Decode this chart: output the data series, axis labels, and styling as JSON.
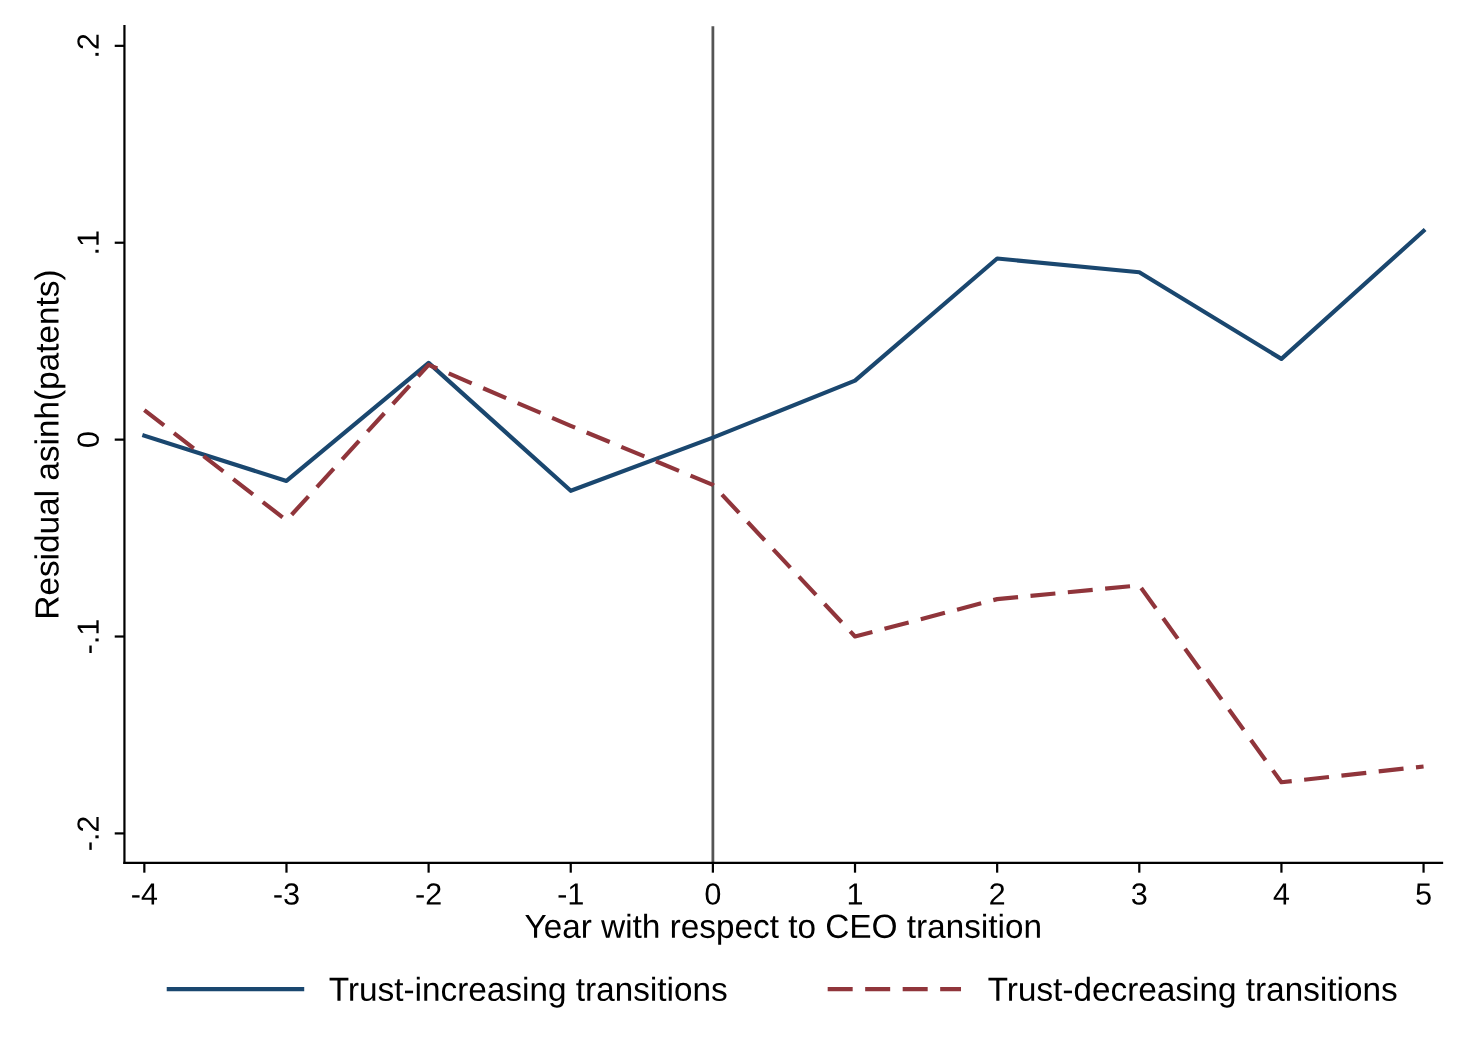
{
  "chart_data": {
    "type": "line",
    "xlabel": "Year with respect to CEO transition",
    "ylabel": "Residual asinh(patents)",
    "x": [
      -4,
      -3,
      -2,
      -1,
      0,
      1,
      2,
      3,
      4,
      5
    ],
    "series": [
      {
        "name": "Trust-increasing transitions",
        "color": "#1a476f",
        "line_style": "solid",
        "values": [
          0.002,
          -0.021,
          0.039,
          -0.026,
          0.001,
          0.03,
          0.092,
          0.085,
          0.041,
          0.106
        ]
      },
      {
        "name": "Trust-decreasing transitions",
        "color": "#90353b",
        "line_style": "dashed",
        "values": [
          0.015,
          -0.041,
          0.038,
          0.007,
          -0.023,
          -0.1,
          -0.081,
          -0.074,
          -0.174,
          -0.166
        ]
      }
    ],
    "xlim": [
      -4.14,
      5.13
    ],
    "ylim": [
      -0.215,
      0.21
    ],
    "xticks": [
      -4,
      -3,
      -2,
      -1,
      0,
      1,
      2,
      3,
      4,
      5
    ],
    "yticks": [
      {
        "value": -0.2,
        "label": "-.2"
      },
      {
        "value": -0.1,
        "label": "-.1"
      },
      {
        "value": 0,
        "label": "0"
      },
      {
        "value": 0.1,
        "label": ".1"
      },
      {
        "value": 0.2,
        "label": ".2"
      }
    ],
    "ref_lines": [
      {
        "axis": "x",
        "value": 0,
        "color": "#555555"
      }
    ],
    "grid": false,
    "legend": "bottom",
    "marker": "none"
  }
}
